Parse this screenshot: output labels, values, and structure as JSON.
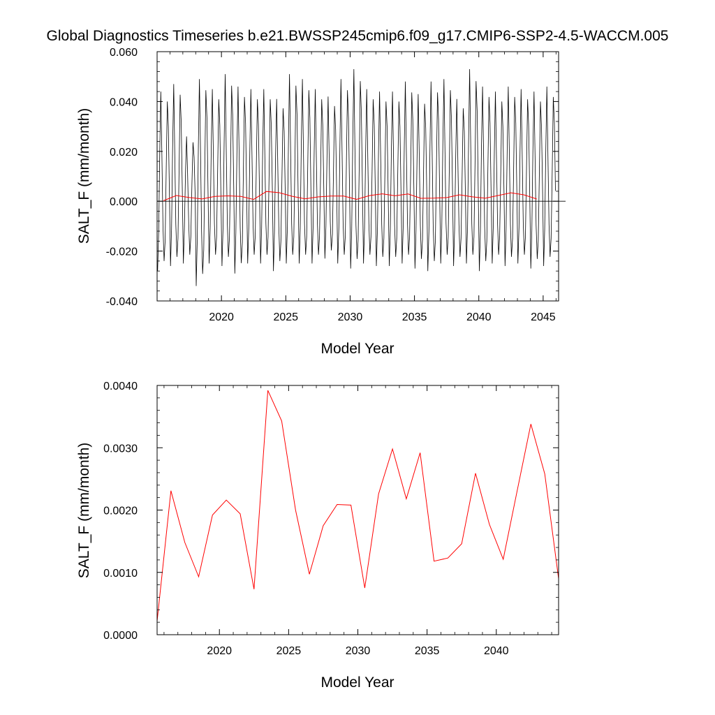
{
  "title": "Global Diagnostics Timeseries b.e21.BWSSP245cmip6.f09_g17.CMIP6-SSP2-4.5-WACCM.005",
  "colors": {
    "monthly": "#000000",
    "annual": "#ff0000",
    "zero_line": "#000000"
  },
  "chart_data": [
    {
      "type": "line",
      "xlabel": "Model Year",
      "ylabel": "SALT_F (mm/month)",
      "xlim": [
        2015.0,
        2046.2
      ],
      "ylim": [
        -0.04,
        0.06
      ],
      "x_ticks": [
        2020,
        2025,
        2030,
        2035,
        2040,
        2045
      ],
      "y_ticks": [
        -0.04,
        -0.02,
        0.0,
        0.02,
        0.04,
        0.06
      ],
      "x_tick_labels": [
        "2020",
        "2025",
        "2030",
        "2035",
        "2040",
        "2045"
      ],
      "y_tick_labels": [
        "-0.040",
        "-0.020",
        "0.000",
        "0.020",
        "0.040",
        "0.060"
      ],
      "reference_line": 0.0,
      "series": [
        {
          "kind": "monthly",
          "color": "#000000",
          "x_start": 2015.04,
          "x_step": 0.08333,
          "seasonal_cycle": [
            -0.028,
            -0.012,
            0.02,
            0.044,
            0.018,
            -0.01,
            -0.024,
            -0.016,
            0.012,
            0.04,
            0.03,
            0.004
          ],
          "yearly_peaks": [
            0.044,
            0.047,
            0.026,
            0.049,
            0.045,
            0.051,
            0.046,
            0.045,
            0.045,
            0.041,
            0.051,
            0.049,
            0.045,
            0.042,
            0.049,
            0.053,
            0.045,
            0.044,
            0.044,
            0.048,
            0.043,
            0.048,
            0.049,
            0.041,
            0.053,
            0.046,
            0.044,
            0.046,
            0.045,
            0.044,
            0.046
          ],
          "yearly_troughs": [
            -0.028,
            -0.026,
            -0.025,
            -0.034,
            -0.025,
            -0.026,
            -0.029,
            -0.025,
            -0.025,
            -0.028,
            -0.025,
            -0.025,
            -0.025,
            -0.023,
            -0.025,
            -0.027,
            -0.025,
            -0.026,
            -0.026,
            -0.025,
            -0.027,
            -0.028,
            -0.025,
            -0.026,
            -0.025,
            -0.028,
            -0.025,
            -0.026,
            -0.025,
            -0.027,
            -0.026
          ]
        },
        {
          "kind": "annual",
          "color": "#ff0000",
          "x": [
            2015.5,
            2016.5,
            2017.5,
            2018.5,
            2019.5,
            2020.5,
            2021.5,
            2022.5,
            2023.5,
            2024.5,
            2025.5,
            2026.5,
            2027.5,
            2028.5,
            2029.5,
            2030.5,
            2031.5,
            2032.5,
            2033.5,
            2034.5,
            2035.5,
            2036.5,
            2037.5,
            2038.5,
            2039.5,
            2040.5,
            2041.5,
            2042.5,
            2043.5,
            2044.5
          ],
          "y": [
            0.00022,
            0.00231,
            0.00148,
            0.00093,
            0.00192,
            0.00216,
            0.00194,
            0.00073,
            0.00392,
            0.00343,
            0.002,
            0.00097,
            0.00175,
            0.00209,
            0.00208,
            0.00075,
            0.00226,
            0.00298,
            0.00218,
            0.00292,
            0.00118,
            0.00123,
            0.00146,
            0.00259,
            0.00177,
            0.00121,
            0.0023,
            0.00338,
            0.00258,
            0.0009
          ]
        }
      ]
    },
    {
      "type": "line",
      "xlabel": "Model Year",
      "ylabel": "SALT_F (mm/month)",
      "xlim": [
        2015.5,
        2044.5
      ],
      "ylim": [
        0.0,
        0.004
      ],
      "x_ticks": [
        2020,
        2025,
        2030,
        2035,
        2040
      ],
      "y_ticks": [
        0.0,
        0.001,
        0.002,
        0.003,
        0.004
      ],
      "x_tick_labels": [
        "2020",
        "2025",
        "2030",
        "2035",
        "2040"
      ],
      "y_tick_labels": [
        "0.0000",
        "0.0010",
        "0.0020",
        "0.0030",
        "0.0040"
      ],
      "series": [
        {
          "kind": "annual",
          "color": "#ff0000",
          "x": [
            2015.5,
            2016.5,
            2017.5,
            2018.5,
            2019.5,
            2020.5,
            2021.5,
            2022.5,
            2023.5,
            2024.5,
            2025.5,
            2026.5,
            2027.5,
            2028.5,
            2029.5,
            2030.5,
            2031.5,
            2032.5,
            2033.5,
            2034.5,
            2035.5,
            2036.5,
            2037.5,
            2038.5,
            2039.5,
            2040.5,
            2041.5,
            2042.5,
            2043.5,
            2044.5
          ],
          "y": [
            0.00022,
            0.00231,
            0.00148,
            0.00093,
            0.00192,
            0.00216,
            0.00194,
            0.00073,
            0.00392,
            0.00343,
            0.002,
            0.00097,
            0.00175,
            0.00209,
            0.00208,
            0.00075,
            0.00226,
            0.00298,
            0.00218,
            0.00292,
            0.00118,
            0.00123,
            0.00146,
            0.00259,
            0.00177,
            0.00121,
            0.0023,
            0.00338,
            0.00258,
            0.0009
          ]
        }
      ]
    }
  ]
}
